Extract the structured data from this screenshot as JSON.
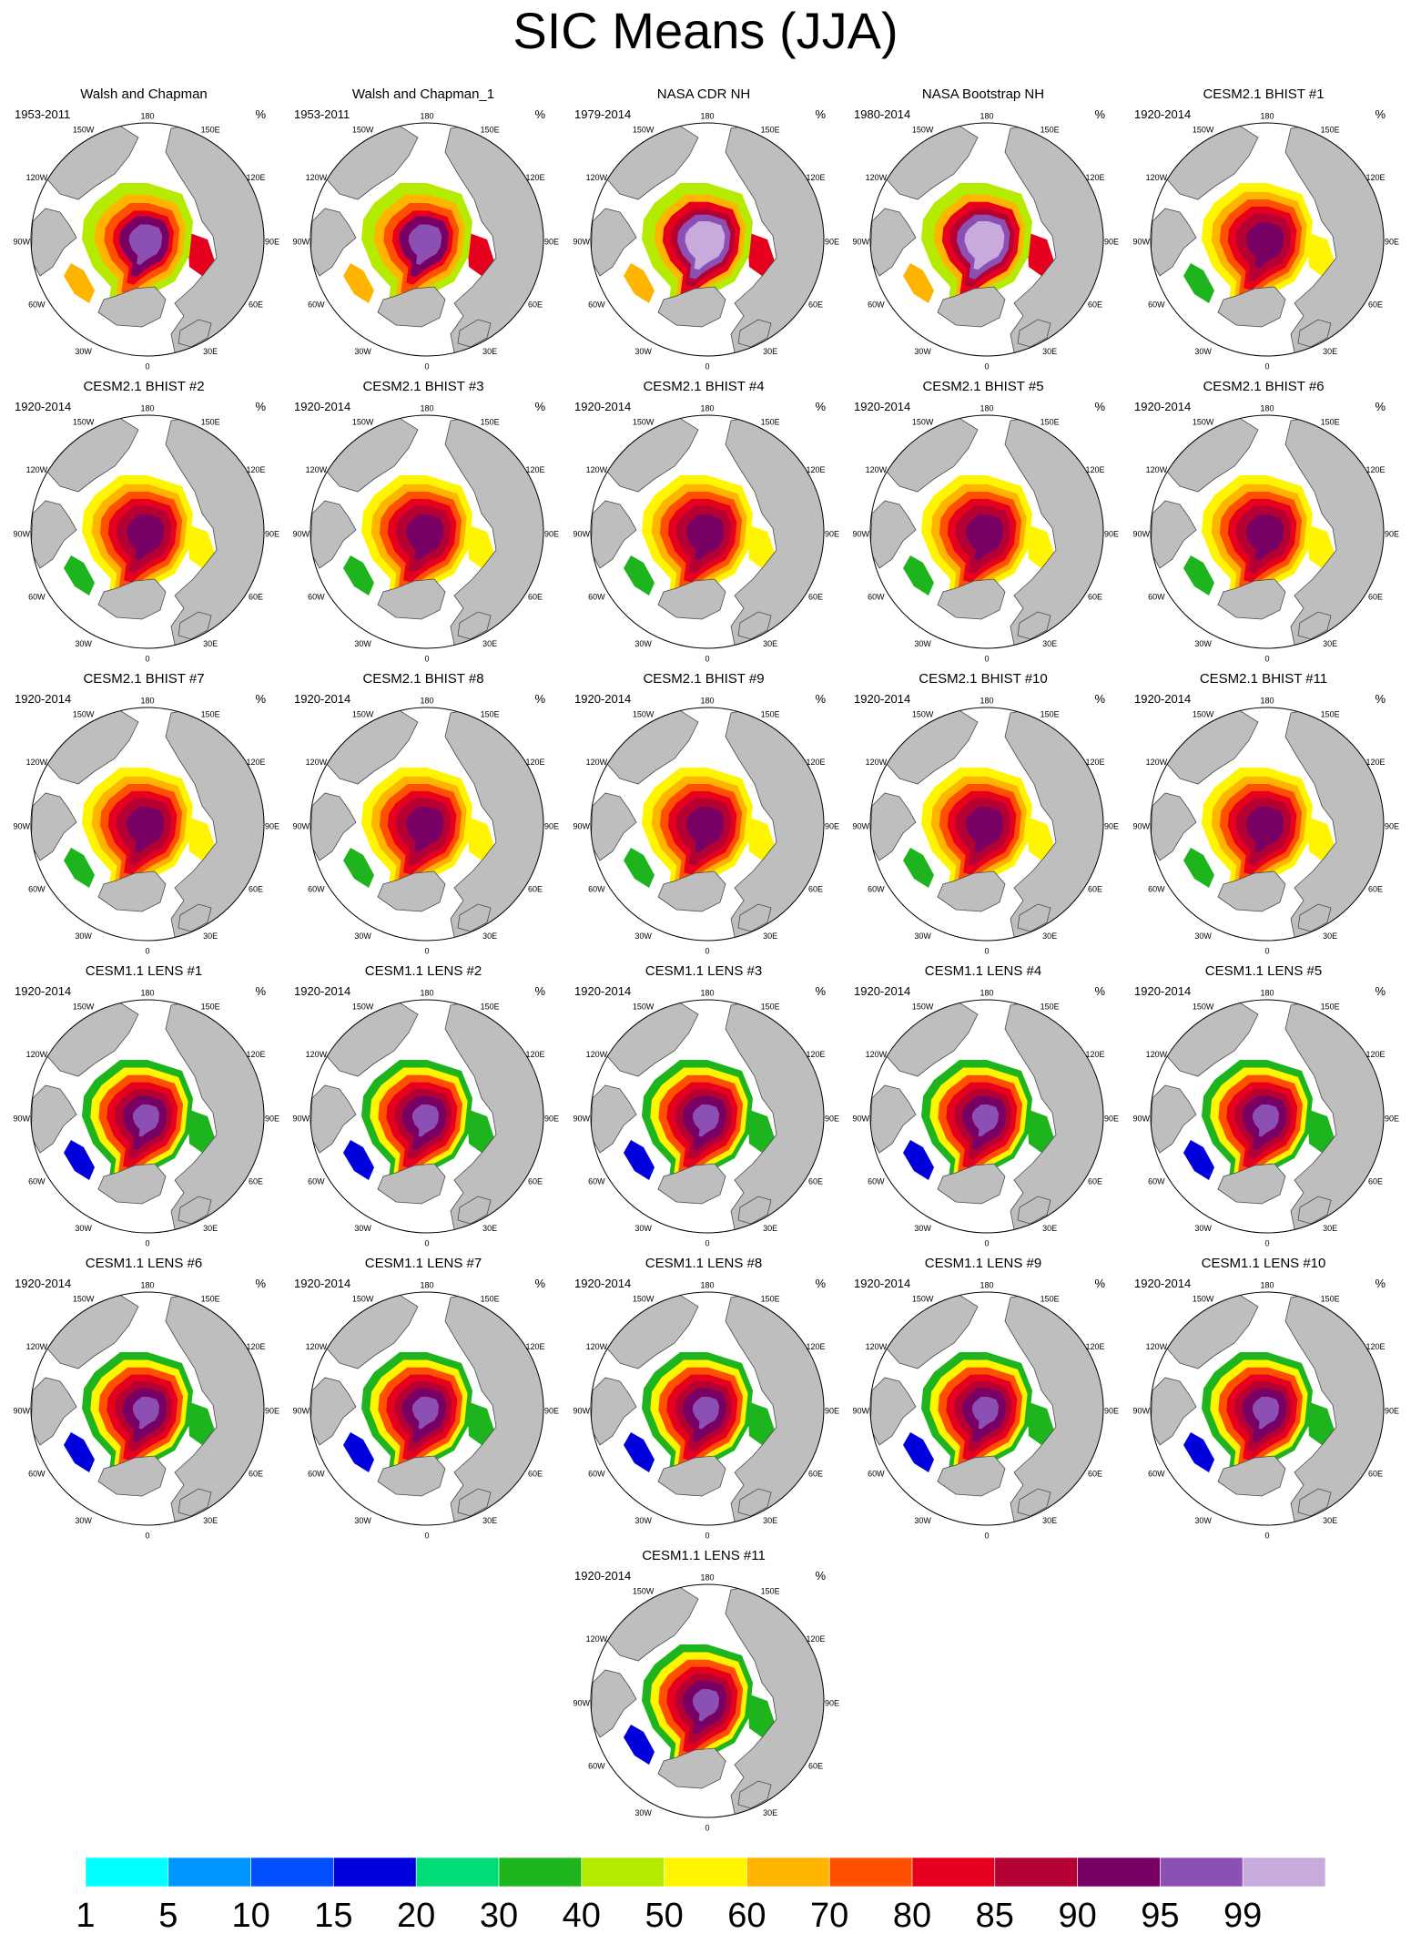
{
  "title": "SIC Means (JJA)",
  "unit_label": "%",
  "lon_labels": [
    "180",
    "150E",
    "120E",
    "90E",
    "60E",
    "30E",
    "0",
    "30W",
    "60W",
    "90W",
    "120W",
    "150W"
  ],
  "panels": [
    {
      "title": "Walsh and Chapman",
      "period": "1953-2011",
      "variant": "obs"
    },
    {
      "title": "Walsh and Chapman_1",
      "period": "1953-2011",
      "variant": "obs"
    },
    {
      "title": "NASA CDR NH",
      "period": "1979-2014",
      "variant": "nasa"
    },
    {
      "title": "NASA Bootstrap NH",
      "period": "1980-2014",
      "variant": "nasa"
    },
    {
      "title": "CESM2.1 BHIST #1",
      "period": "1920-2014",
      "variant": "bhist"
    },
    {
      "title": "CESM2.1 BHIST #2",
      "period": "1920-2014",
      "variant": "bhist"
    },
    {
      "title": "CESM2.1 BHIST #3",
      "period": "1920-2014",
      "variant": "bhist"
    },
    {
      "title": "CESM2.1 BHIST #4",
      "period": "1920-2014",
      "variant": "bhist"
    },
    {
      "title": "CESM2.1 BHIST #5",
      "period": "1920-2014",
      "variant": "bhist"
    },
    {
      "title": "CESM2.1 BHIST #6",
      "period": "1920-2014",
      "variant": "bhist"
    },
    {
      "title": "CESM2.1 BHIST #7",
      "period": "1920-2014",
      "variant": "bhist"
    },
    {
      "title": "CESM2.1 BHIST #8",
      "period": "1920-2014",
      "variant": "bhist"
    },
    {
      "title": "CESM2.1 BHIST #9",
      "period": "1920-2014",
      "variant": "bhist"
    },
    {
      "title": "CESM2.1 BHIST #10",
      "period": "1920-2014",
      "variant": "bhist"
    },
    {
      "title": "CESM2.1 BHIST #11",
      "period": "1920-2014",
      "variant": "bhist"
    },
    {
      "title": "CESM1.1 LENS #1",
      "period": "1920-2014",
      "variant": "lens"
    },
    {
      "title": "CESM1.1 LENS #2",
      "period": "1920-2014",
      "variant": "lens"
    },
    {
      "title": "CESM1.1 LENS #3",
      "period": "1920-2014",
      "variant": "lens"
    },
    {
      "title": "CESM1.1 LENS #4",
      "period": "1920-2014",
      "variant": "lens"
    },
    {
      "title": "CESM1.1 LENS #5",
      "period": "1920-2014",
      "variant": "lens"
    },
    {
      "title": "CESM1.1 LENS #6",
      "period": "1920-2014",
      "variant": "lens"
    },
    {
      "title": "CESM1.1 LENS #7",
      "period": "1920-2014",
      "variant": "lens"
    },
    {
      "title": "CESM1.1 LENS #8",
      "period": "1920-2014",
      "variant": "lens"
    },
    {
      "title": "CESM1.1 LENS #9",
      "period": "1920-2014",
      "variant": "lens"
    },
    {
      "title": "CESM1.1 LENS #10",
      "period": "1920-2014",
      "variant": "lens"
    },
    {
      "title": "CESM1.1 LENS #11",
      "period": "1920-2014",
      "variant": "lens"
    }
  ],
  "colorbar": {
    "ticks": [
      "1",
      "5",
      "10",
      "15",
      "20",
      "30",
      "40",
      "50",
      "60",
      "70",
      "80",
      "85",
      "90",
      "95",
      "99"
    ],
    "colors": [
      "#00FFFF",
      "#0096FF",
      "#0050FF",
      "#0000DC",
      "#00DC78",
      "#1EB41E",
      "#B4EB00",
      "#FFF500",
      "#FFB400",
      "#FF5000",
      "#E6001E",
      "#B40032",
      "#780064",
      "#8C50B4",
      "#C8AADC"
    ]
  },
  "map_colors": {
    "land": "#BEBEBE",
    "ocean": "#FFFFFF",
    "coast": "#4A4A4A",
    "frame": "#000000"
  }
}
